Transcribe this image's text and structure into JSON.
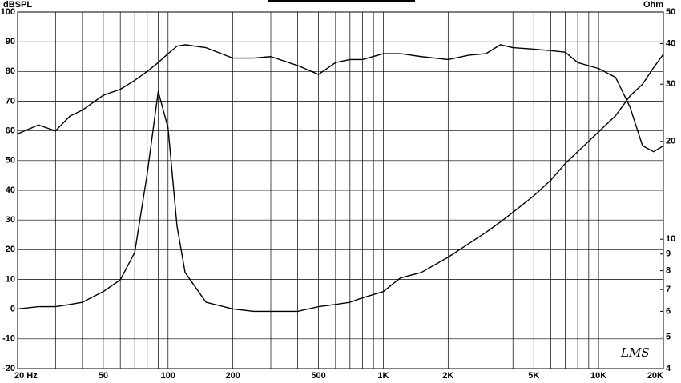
{
  "chart_data": {
    "type": "line",
    "y_label": "dBSPL",
    "y2_label": "Ohm",
    "annotation": "LMS",
    "xlog": true,
    "y2log": true,
    "grid": true,
    "xlim": [
      20,
      20000
    ],
    "ylim": [
      -20,
      100
    ],
    "y2lim": [
      4,
      50
    ],
    "xticks": [
      {
        "value": 20,
        "label": "20  Hz"
      },
      50,
      100,
      200,
      500,
      {
        "value": 1000,
        "label": "1K"
      },
      {
        "value": 2000,
        "label": "2K"
      },
      {
        "value": 5000,
        "label": "5K"
      },
      {
        "value": 10000,
        "label": "10K"
      },
      {
        "value": 20000,
        "label": "20K"
      }
    ],
    "xminor": [
      30,
      40,
      60,
      70,
      80,
      90,
      300,
      400,
      600,
      700,
      800,
      900,
      3000,
      4000,
      6000,
      7000,
      8000,
      9000
    ],
    "yticks": [
      -20,
      -10,
      0,
      10,
      20,
      30,
      40,
      50,
      60,
      70,
      80,
      90,
      100
    ],
    "y2ticks": [
      4,
      5,
      6,
      7,
      8,
      9,
      10,
      20,
      30,
      40,
      50
    ],
    "x": [
      20,
      25,
      30,
      35,
      40,
      50,
      60,
      70,
      80,
      90,
      100,
      110,
      120,
      150,
      200,
      250,
      300,
      400,
      500,
      600,
      700,
      800,
      1000,
      1200,
      1500,
      2000,
      2500,
      3000,
      3500,
      4000,
      5000,
      6000,
      7000,
      8000,
      10000,
      12000,
      14000,
      16000,
      18000,
      20000
    ],
    "series": [
      {
        "color": "#000000",
        "values": [
          59,
          62,
          60,
          65,
          67,
          72,
          74,
          77,
          80,
          83,
          86,
          88.5,
          89,
          88,
          84.5,
          84.5,
          85,
          82,
          79,
          83,
          84,
          84,
          86,
          86,
          85,
          84,
          85.5,
          86,
          89,
          88,
          87.5,
          87,
          86.5,
          83,
          81,
          78,
          68,
          55,
          53,
          55
        ]
      },
      {
        "color": "#000000",
        "axis": "y2",
        "values": [
          6.1,
          6.2,
          6.2,
          6.3,
          6.4,
          6.9,
          7.5,
          9.1,
          15.9,
          28.5,
          22,
          11,
          7.9,
          6.4,
          6.1,
          6.0,
          6.0,
          6.0,
          6.2,
          6.3,
          6.4,
          6.6,
          6.9,
          7.6,
          7.9,
          8.8,
          9.7,
          10.5,
          11.3,
          12.1,
          13.6,
          15.2,
          17.1,
          18.6,
          21.4,
          24,
          27.6,
          30,
          33.7,
          37.1
        ]
      }
    ]
  }
}
